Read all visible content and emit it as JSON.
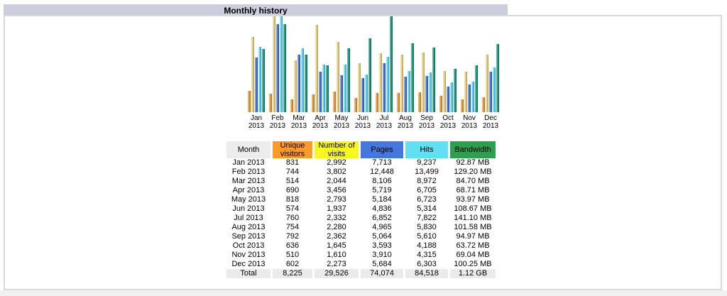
{
  "page": {
    "title": "Monthly history"
  },
  "chart_data": {
    "type": "bar",
    "title": "Monthly history",
    "categories": [
      "Jan 2013",
      "Feb 2013",
      "Mar 2013",
      "Apr 2013",
      "May 2013",
      "Jun 2013",
      "Jul 2013",
      "Aug 2013",
      "Sep 2013",
      "Oct 2013",
      "Nov 2013",
      "Dec 2013"
    ],
    "series": [
      {
        "key": "unique-visitors",
        "name": "Unique visitors",
        "values": [
          831,
          744,
          514,
          690,
          818,
          574,
          760,
          754,
          792,
          636,
          510,
          602
        ]
      },
      {
        "key": "visits",
        "name": "Number of visits",
        "values": [
          2992,
          3802,
          2044,
          3456,
          2793,
          1937,
          2332,
          2280,
          2362,
          1645,
          1610,
          2273
        ]
      },
      {
        "key": "pages",
        "name": "Pages",
        "values": [
          7713,
          12448,
          8106,
          5719,
          5184,
          4836,
          6852,
          4965,
          5064,
          3593,
          3910,
          5684
        ]
      },
      {
        "key": "hits",
        "name": "Hits",
        "values": [
          9237,
          13499,
          8972,
          6705,
          6723,
          5314,
          7822,
          5830,
          5610,
          4188,
          4315,
          6303
        ]
      },
      {
        "key": "bandwidth",
        "name": "Bandwidth",
        "unit": "MB",
        "values": [
          92.87,
          129.2,
          84.7,
          68.71,
          93.97,
          108.67,
          141.1,
          101.58,
          94.97,
          63.72,
          69.04,
          100.25
        ]
      }
    ],
    "grid": false,
    "legend_position": "table-headers",
    "notes": "Each bar pair scale: unique+visits share max, pages+hits share max, bandwidth own max"
  },
  "table": {
    "headers": [
      "Month",
      "Unique visitors",
      "Number of visits",
      "Pages",
      "Hits",
      "Bandwidth"
    ],
    "rows": [
      [
        "Jan 2013",
        "831",
        "2,992",
        "7,713",
        "9,237",
        "92.87 MB"
      ],
      [
        "Feb 2013",
        "744",
        "3,802",
        "12,448",
        "13,499",
        "129.20 MB"
      ],
      [
        "Mar 2013",
        "514",
        "2,044",
        "8,106",
        "8,972",
        "84.70 MB"
      ],
      [
        "Apr 2013",
        "690",
        "3,456",
        "5,719",
        "6,705",
        "68.71 MB"
      ],
      [
        "May 2013",
        "818",
        "2,793",
        "5,184",
        "6,723",
        "93.97 MB"
      ],
      [
        "Jun 2013",
        "574",
        "1,937",
        "4,836",
        "5,314",
        "108.67 MB"
      ],
      [
        "Jul 2013",
        "760",
        "2,332",
        "6,852",
        "7,822",
        "141.10 MB"
      ],
      [
        "Aug 2013",
        "754",
        "2,280",
        "4,965",
        "5,830",
        "101.58 MB"
      ],
      [
        "Sep 2013",
        "792",
        "2,362",
        "5,064",
        "5,610",
        "94.97 MB"
      ],
      [
        "Oct 2013",
        "636",
        "1,645",
        "3,593",
        "4,188",
        "63.72 MB"
      ],
      [
        "Nov 2013",
        "510",
        "1,610",
        "3,910",
        "4,315",
        "69.04 MB"
      ],
      [
        "Dec 2013",
        "602",
        "2,273",
        "5,684",
        "6,303",
        "100.25 MB"
      ]
    ],
    "total": [
      "Total",
      "8,225",
      "29,526",
      "74,074",
      "84,518",
      "1.12 GB"
    ]
  },
  "colors": {
    "title_bar_bg": "#CCCCDD",
    "table_header_bgs": [
      "#ECECEC",
      "#FC9A28",
      "#F6F622",
      "#4477DD",
      "#62DFF2",
      "#2E9E4F"
    ],
    "total_row_bg": "#EAEAEA",
    "series": [
      {
        "key": "unique-visitors",
        "bar_light": "#F6C98E",
        "bar_mid": "#E9973C",
        "bar_dark": "#AD6C18"
      },
      {
        "key": "visits",
        "bar_light": "#F2E7B4",
        "bar_mid": "#E3D08C",
        "bar_dark": "#A89A4E"
      },
      {
        "key": "pages",
        "bar_light": "#A6BDEC",
        "bar_mid": "#4B79DB",
        "bar_dark": "#28479C"
      },
      {
        "key": "hits",
        "bar_light": "#C2F0FA",
        "bar_mid": "#60D2EE",
        "bar_dark": "#2C9CBE"
      },
      {
        "key": "bandwidth",
        "bar_light": "#84CCB9",
        "bar_mid": "#1E9E81",
        "bar_dark": "#0A644D"
      }
    ]
  }
}
